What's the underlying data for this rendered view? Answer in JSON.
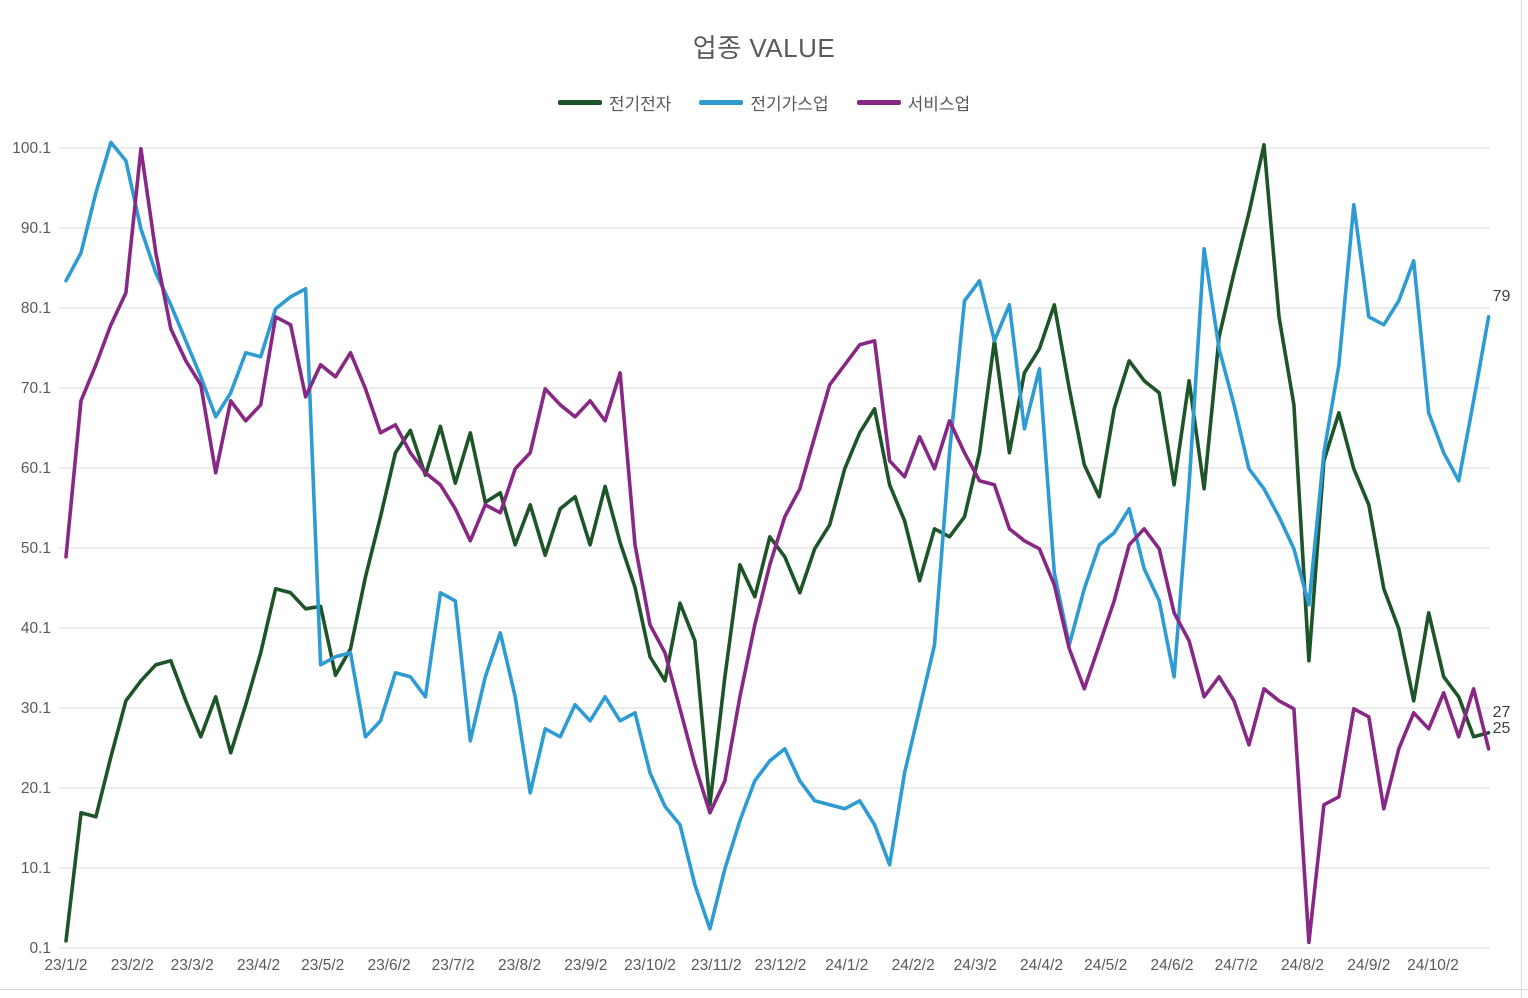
{
  "title": "업종 VALUE",
  "legend": {
    "items": [
      {
        "label": "전기전자",
        "color": "#1D5428"
      },
      {
        "label": "전기가스업",
        "color": "#2E9BD3"
      },
      {
        "label": "서비스업",
        "color": "#882885"
      }
    ]
  },
  "chart_data": {
    "type": "line",
    "title": "업종 VALUE",
    "xlabel": "",
    "ylabel": "",
    "grid": true,
    "legend_position": "top",
    "grid_color": "#D9D9D9",
    "axis_label_color": "#595959",
    "title_color": "#595959",
    "data_label_color": "#404040",
    "y_ticks": [
      0.1,
      10.1,
      20.1,
      30.1,
      40.1,
      50.1,
      60.1,
      70.1,
      80.1,
      90.1,
      100.1
    ],
    "y_tick_labels": [
      "0.1",
      "10.1",
      "20.1",
      "30.1",
      "40.1",
      "50.1",
      "60.1",
      "70.1",
      "80.1",
      "90.1",
      "100.1"
    ],
    "ylim": [
      0.1,
      100.1
    ],
    "x_tick_labels": [
      "23/1/2",
      "23/2/2",
      "23/3/2",
      "23/4/2",
      "23/5/2",
      "23/6/2",
      "23/7/2",
      "23/8/2",
      "23/9/2",
      "23/10/2",
      "23/11/2",
      "23/12/2",
      "24/1/2",
      "24/2/2",
      "24/3/2",
      "24/4/2",
      "24/5/2",
      "24/6/2",
      "24/7/2",
      "24/8/2",
      "24/9/2",
      "24/10/2"
    ],
    "x_tick_days": [
      0,
      31,
      59,
      90,
      120,
      151,
      181,
      212,
      243,
      273,
      304,
      334,
      365,
      396,
      425,
      456,
      486,
      517,
      547,
      578,
      609,
      639
    ],
    "x_step_days": 7,
    "x_span_days": 666,
    "series": [
      {
        "name": "전기전자",
        "color": "#1D5428",
        "end_label": "27",
        "values": [
          1,
          17,
          16.5,
          24,
          31,
          33.5,
          35.5,
          36,
          31,
          26.5,
          31.5,
          24.5,
          30.5,
          37,
          45,
          44.5,
          42.5,
          42.8,
          34.2,
          37.5,
          46.5,
          54,
          62,
          64.8,
          59.2,
          65.3,
          58.2,
          64.5,
          55.8,
          57,
          50.5,
          55.5,
          49.2,
          55,
          56.5,
          50.5,
          57.8,
          50.8,
          45.2,
          36.5,
          33.5,
          43.2,
          38.5,
          18,
          34,
          48,
          44,
          51.5,
          49,
          44.5,
          50,
          53,
          60,
          64.5,
          67.5,
          58,
          53.5,
          46,
          52.5,
          51.5,
          54,
          62,
          76,
          62,
          72,
          75,
          80.5,
          70,
          60.5,
          56.5,
          67.5,
          73.5,
          71,
          69.5,
          58,
          71,
          57.5,
          76.5,
          84.5,
          92,
          100.5,
          79,
          68,
          36,
          61,
          67,
          60,
          55.5,
          45,
          40,
          31,
          42,
          34,
          31.5,
          26.5,
          27
        ]
      },
      {
        "name": "전기가스업",
        "color": "#2E9BD3",
        "end_label": "79",
        "values": [
          83.5,
          87,
          94.5,
          100.8,
          98.5,
          90,
          84.5,
          80.5,
          76,
          71.5,
          66.5,
          69.5,
          74.5,
          74,
          80,
          81.5,
          82.5,
          35.5,
          36.5,
          37,
          26.5,
          28.5,
          34.5,
          34,
          31.5,
          44.5,
          43.5,
          26,
          34,
          39.5,
          31.5,
          19.5,
          27.5,
          26.5,
          30.5,
          28.5,
          31.5,
          28.5,
          29.5,
          22,
          17.8,
          15.5,
          8,
          2.5,
          10,
          16,
          21,
          23.5,
          25,
          21,
          18.5,
          18,
          17.5,
          18.5,
          15.5,
          10.5,
          22,
          30,
          38,
          62,
          81,
          83.5,
          76,
          80.5,
          65,
          72.5,
          47,
          38,
          45,
          50.5,
          52,
          55,
          47.5,
          43.5,
          34,
          58,
          87.5,
          75,
          68,
          60,
          57.5,
          54,
          50,
          43,
          62,
          73,
          93,
          79,
          78,
          81,
          86,
          67,
          62,
          58.5,
          68.5,
          79
        ]
      },
      {
        "name": "서비스업",
        "color": "#882885",
        "end_label": "25",
        "values": [
          49,
          68.5,
          73,
          78,
          82,
          100,
          87,
          77.5,
          73.5,
          70.5,
          59.5,
          68.5,
          66,
          68,
          79,
          78,
          69,
          73,
          71.5,
          74.5,
          70,
          64.5,
          65.5,
          62,
          59.5,
          58,
          55,
          51,
          55.5,
          54.5,
          60,
          62,
          70,
          68,
          66.5,
          68.5,
          66,
          72,
          50.5,
          40.5,
          37,
          30,
          23,
          17,
          21,
          31.5,
          40.5,
          48,
          54,
          57.5,
          64,
          70.5,
          73,
          75.5,
          76,
          61,
          59,
          64,
          60,
          66,
          62,
          58.5,
          58,
          52.5,
          51,
          50,
          45.5,
          37.5,
          32.5,
          38,
          43.5,
          50.5,
          52.5,
          50,
          42,
          38.5,
          31.5,
          34,
          31,
          25.5,
          32.5,
          31,
          30,
          0.8,
          18,
          19,
          30,
          29,
          17.5,
          25,
          29.5,
          27.5,
          32,
          26.5,
          32.5,
          25
        ]
      }
    ]
  }
}
